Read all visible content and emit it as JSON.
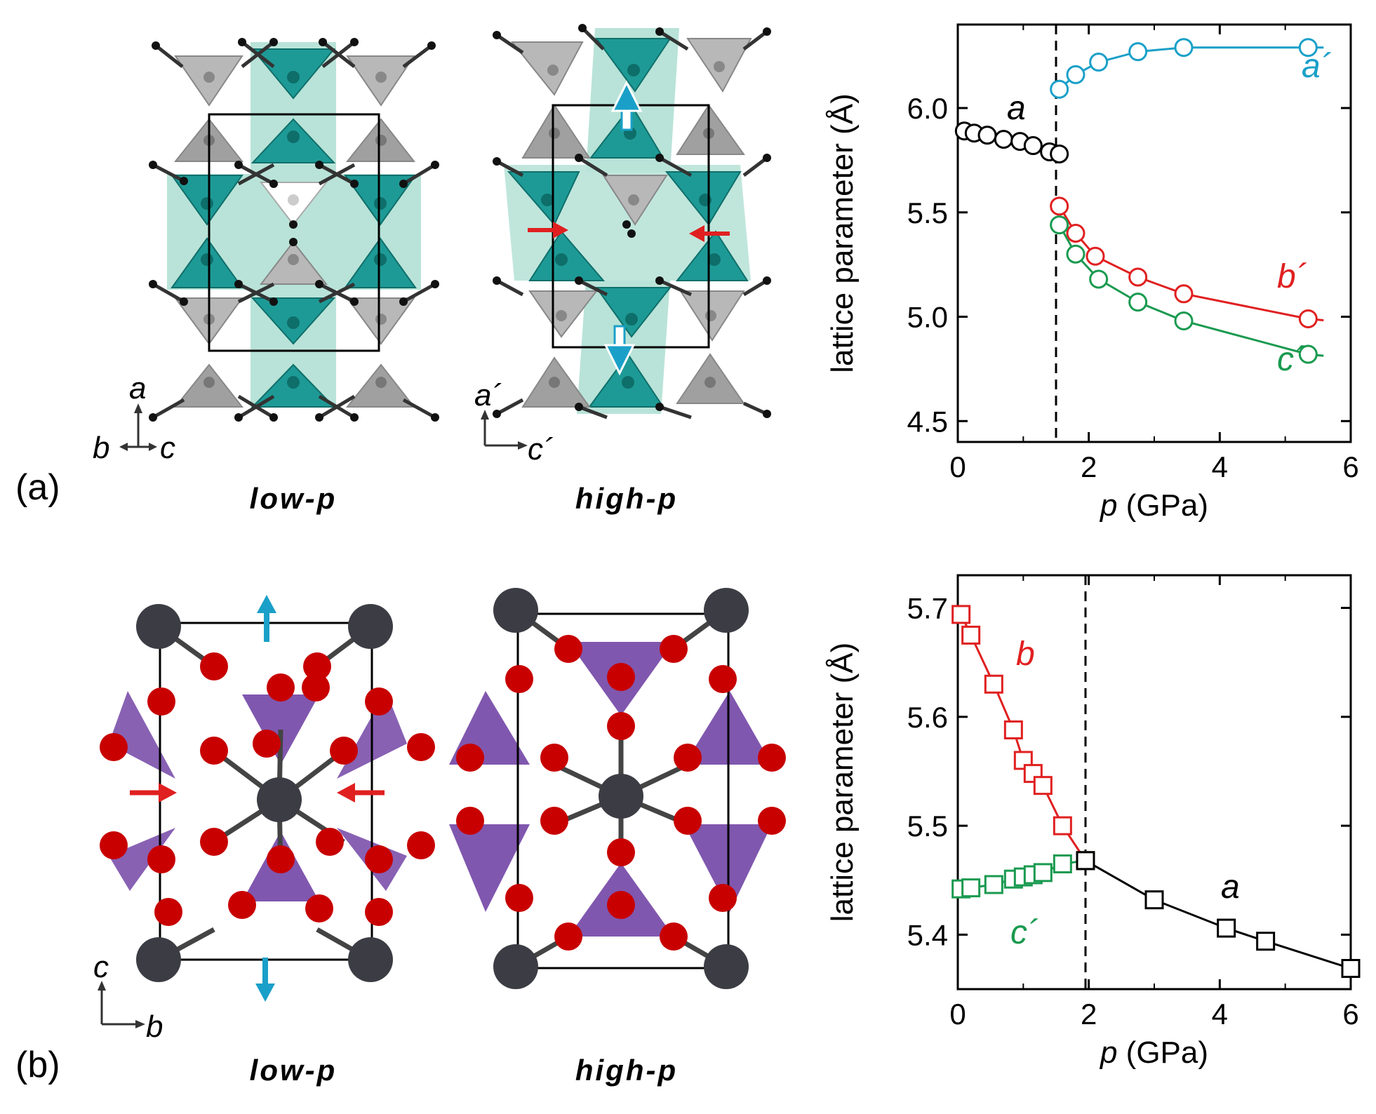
{
  "colors": {
    "cyan": "#1aa0c8",
    "red": "#e02020",
    "green": "#1a9a50",
    "black": "#000000",
    "teal_polyhedra": "#1e9a96",
    "teal_light": "#b9e3d8",
    "gray_polyhedra": "#a8a8a8",
    "purple_polyhedra": "#6a3aa0",
    "oxygen": "#cc0000",
    "cation": "#3c3c44"
  },
  "panels": {
    "a": {
      "label": "(a)",
      "low_p_label": "low-p",
      "high_p_label": "high-p",
      "low_axes": {
        "vertical": "a",
        "horizontal_left": "b",
        "horizontal_right": "c"
      },
      "high_axes": {
        "vertical": "a´",
        "horizontal": "c´"
      }
    },
    "b": {
      "label": "(b)",
      "low_p_label": "low-p",
      "high_p_label": "high-p",
      "low_axes": {
        "vertical": "c",
        "horizontal": "b"
      }
    }
  },
  "chart_data": [
    {
      "type": "line",
      "panel": "a",
      "xlabel": "p (GPa)",
      "ylabel": "lattice parameter (Å)",
      "xlim": [
        0,
        6
      ],
      "ylim": [
        4.4,
        6.4
      ],
      "xticks": [
        0,
        2,
        4,
        6
      ],
      "yticks": [
        4.5,
        5.0,
        5.5,
        6.0
      ],
      "transition_p": 1.5,
      "series": [
        {
          "name": "a",
          "color": "#000000",
          "marker": "circle",
          "x": [
            0.1,
            0.25,
            0.45,
            0.7,
            0.95,
            1.15,
            1.4,
            1.55
          ],
          "y": [
            5.89,
            5.88,
            5.87,
            5.85,
            5.84,
            5.82,
            5.79,
            5.78
          ]
        },
        {
          "name": "a´",
          "color": "#1aa0c8",
          "marker": "circle",
          "x": [
            1.55,
            1.8,
            2.15,
            2.75,
            3.45,
            5.35
          ],
          "y": [
            6.09,
            6.16,
            6.22,
            6.27,
            6.29,
            6.29
          ]
        },
        {
          "name": "b´",
          "color": "#e02020",
          "marker": "circle",
          "x": [
            1.55,
            1.8,
            2.1,
            2.75,
            3.45,
            5.35
          ],
          "y": [
            5.53,
            5.4,
            5.29,
            5.19,
            5.11,
            4.99
          ]
        },
        {
          "name": "c´",
          "color": "#1a9a50",
          "marker": "circle",
          "x": [
            1.55,
            1.8,
            2.15,
            2.75,
            3.45,
            5.35
          ],
          "y": [
            5.44,
            5.3,
            5.18,
            5.07,
            4.98,
            4.82
          ]
        }
      ]
    },
    {
      "type": "line",
      "panel": "b",
      "xlabel": "p (GPa)",
      "ylabel": "lattice parameter (Å)",
      "xlim": [
        0,
        6
      ],
      "ylim": [
        5.35,
        5.73
      ],
      "xticks": [
        0,
        2,
        4,
        6
      ],
      "yticks": [
        5.4,
        5.5,
        5.6,
        5.7
      ],
      "transition_p": 1.95,
      "series": [
        {
          "name": "b",
          "color": "#e02020",
          "marker": "square",
          "x": [
            0.05,
            0.2,
            0.55,
            0.85,
            1.0,
            1.15,
            1.3,
            1.6,
            1.95
          ],
          "y": [
            5.694,
            5.675,
            5.63,
            5.588,
            5.56,
            5.548,
            5.537,
            5.5,
            5.468
          ]
        },
        {
          "name": "c´",
          "color": "#1a9a50",
          "marker": "square",
          "x": [
            0.05,
            0.2,
            0.55,
            0.85,
            1.0,
            1.15,
            1.3,
            1.6,
            1.95
          ],
          "y": [
            5.442,
            5.443,
            5.446,
            5.451,
            5.453,
            5.455,
            5.457,
            5.465,
            5.468
          ]
        },
        {
          "name": "a",
          "color": "#000000",
          "marker": "square",
          "x": [
            1.95,
            3.0,
            4.1,
            4.7,
            6.0
          ],
          "y": [
            5.468,
            5.432,
            5.406,
            5.394,
            5.369
          ]
        }
      ]
    }
  ]
}
